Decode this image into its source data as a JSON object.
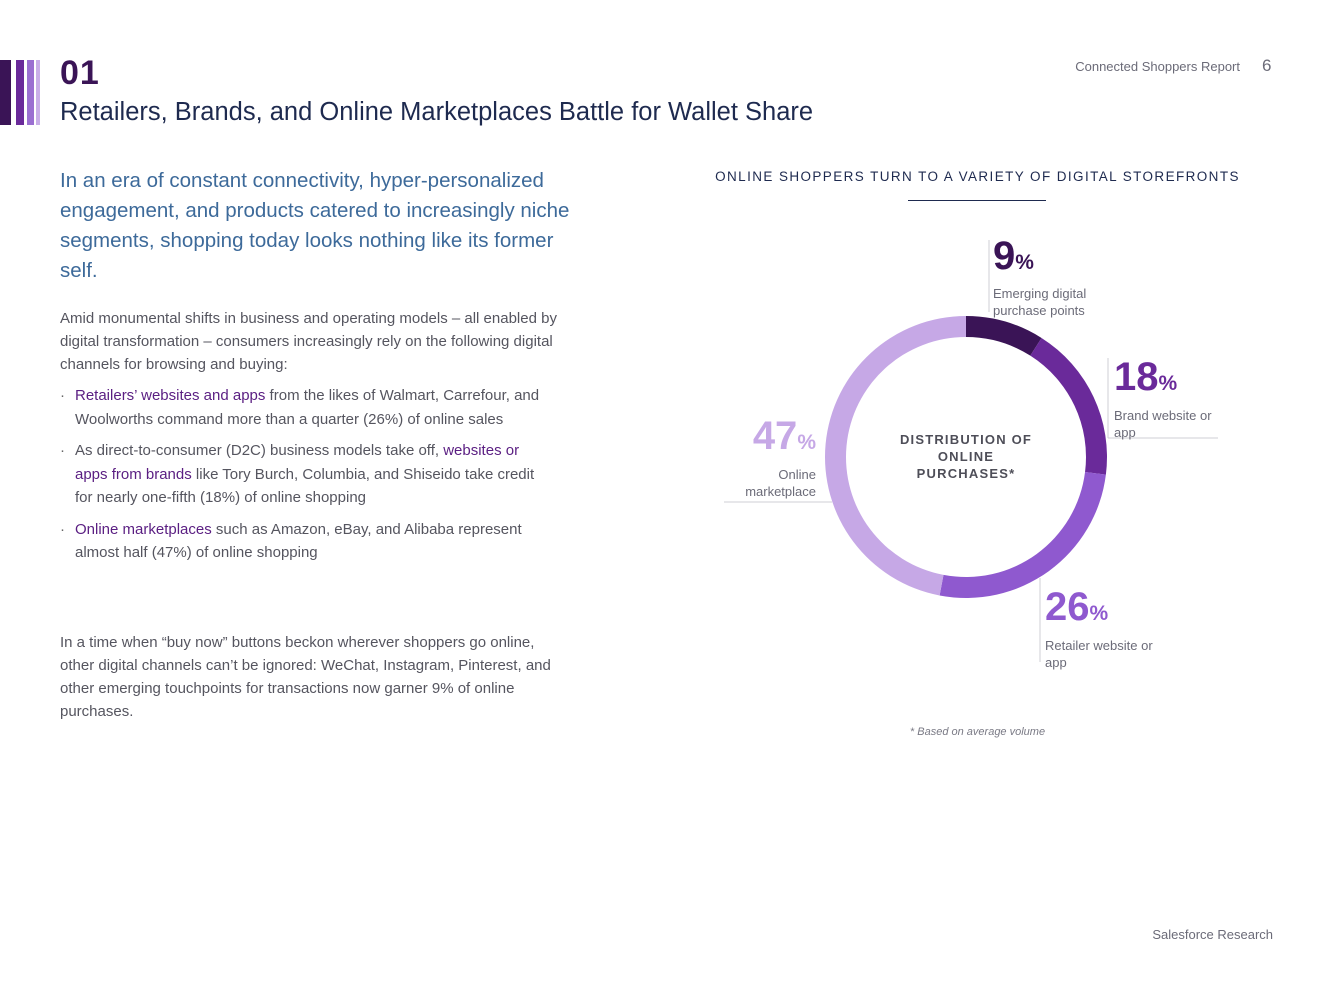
{
  "header": {
    "section_number": "01",
    "section_title": "Retailers, Brands, and Online Marketplaces Battle for Wallet Share",
    "report_name": "Connected Shoppers Report",
    "page_number": "6",
    "accent_colors": [
      "#3a1456",
      "#6a2a9a",
      "#9b6fd1",
      "#c9aee8"
    ]
  },
  "intro": {
    "lead": "In an era of constant connectivity, hyper-personalized engagement, and products catered to increasingly niche segments, shopping today looks nothing like its former self.",
    "paragraph1": "Amid monumental shifts in business and operating models – all enabled by digital transformation – consumers increasingly rely on the following digital channels for browsing and buying:",
    "bullets": [
      {
        "highlight": "Retailers’ websites and apps",
        "rest": " from the likes of Walmart, Carrefour, and Woolworths command more than a quarter (26%) of online sales"
      },
      {
        "lead": "As direct-to-consumer (D2C) business models take off, ",
        "highlight": "websites or apps from brands",
        "rest": " like Tory Burch, Columbia, and Shiseido take credit for nearly one-fifth (18%) of online shopping"
      },
      {
        "highlight": "Online marketplaces",
        "rest": " such as Amazon, eBay, and Alibaba represent almost half (47%) of online shopping"
      }
    ],
    "paragraph2": "In a time when “buy now” buttons beckon wherever shoppers go online, other digital channels can’t be ignored: WeChat, Instagram, Pinterest, and other emerging touchpoints for transactions now garner 9% of online purchases."
  },
  "chart_data": {
    "type": "pie",
    "title": "ONLINE SHOPPERS TURN TO A VARIETY OF DIGITAL STOREFRONTS",
    "center_label": "DISTRIBUTION OF ONLINE PURCHASES*",
    "unit": "%",
    "slices": [
      {
        "value": 9,
        "label": "9",
        "name": "Emerging digital purchase points",
        "color": "#3a1456"
      },
      {
        "value": 18,
        "label": "18",
        "name": "Brand website or app",
        "color": "#6a2a9a"
      },
      {
        "value": 26,
        "label": "26",
        "name": "Retailer website or app",
        "color": "#8f59cf"
      },
      {
        "value": 47,
        "label": "47",
        "name": "Online marketplace",
        "color": "#c6a8e6"
      }
    ],
    "footnote": "* Based on average volume"
  },
  "footer": {
    "text": "Salesforce Research"
  }
}
